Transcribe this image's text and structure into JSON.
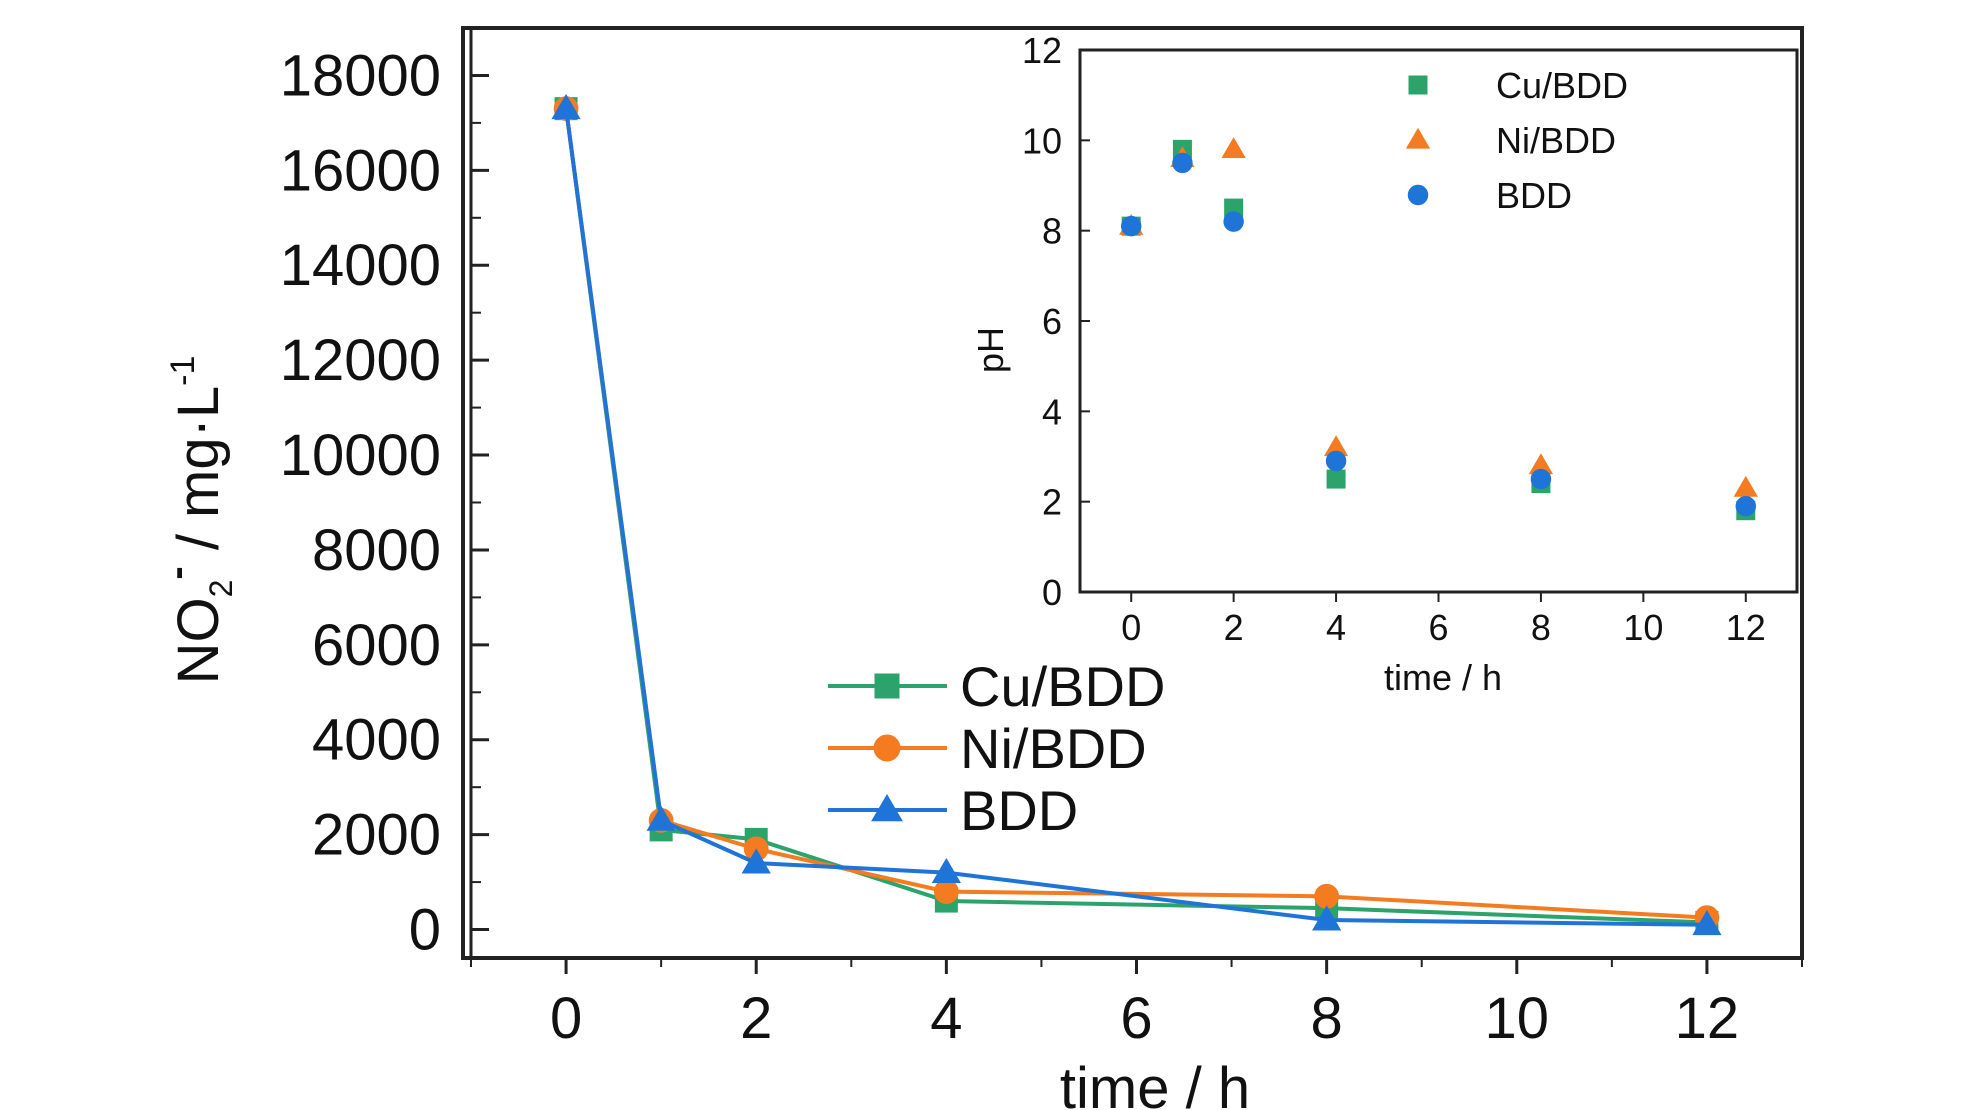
{
  "chart_data": [
    {
      "type": "line",
      "xlabel": "time / h",
      "ylabel_main": "NO",
      "ylabel_sub": "2",
      "ylabel_sup": "-",
      "ylabel_rest": " / mg·L",
      "ylabel_rest_sup": "-1",
      "xlim": [
        -1,
        13
      ],
      "ylim": [
        -600,
        19000
      ],
      "xticks": [
        0,
        2,
        4,
        6,
        8,
        10,
        12
      ],
      "yticks": [
        0,
        2000,
        4000,
        6000,
        8000,
        10000,
        12000,
        14000,
        16000,
        18000
      ],
      "legend_position": "center-right",
      "series": [
        {
          "name": "Cu/BDD",
          "color": "#2ca36b",
          "marker": "square",
          "x": [
            0,
            1,
            2,
            4,
            8,
            12
          ],
          "y": [
            17300,
            2100,
            1900,
            600,
            450,
            150
          ]
        },
        {
          "name": "Ni/BDD",
          "color": "#f47b20",
          "marker": "circle",
          "x": [
            0,
            1,
            2,
            4,
            8,
            12
          ],
          "y": [
            17300,
            2300,
            1700,
            800,
            700,
            250
          ]
        },
        {
          "name": "BDD",
          "color": "#1f74d8",
          "marker": "triangle",
          "x": [
            0,
            1,
            2,
            4,
            8,
            12
          ],
          "y": [
            17300,
            2300,
            1400,
            1200,
            200,
            100
          ]
        }
      ]
    },
    {
      "type": "scatter",
      "xlabel": "time / h",
      "ylabel": "pH",
      "xlim": [
        -1,
        13
      ],
      "ylim": [
        0,
        12
      ],
      "xticks": [
        0,
        2,
        4,
        6,
        8,
        10,
        12
      ],
      "yticks": [
        0,
        2,
        4,
        6,
        8,
        10,
        12
      ],
      "legend_position": "top-right",
      "series": [
        {
          "name": "Cu/BDD",
          "color": "#2ca36b",
          "marker": "square",
          "x": [
            0,
            1,
            2,
            4,
            8,
            12
          ],
          "y": [
            8.1,
            9.8,
            8.5,
            2.5,
            2.4,
            1.8
          ]
        },
        {
          "name": "Ni/BDD",
          "color": "#f47b20",
          "marker": "triangle",
          "x": [
            0,
            1,
            2,
            4,
            8,
            12
          ],
          "y": [
            8.1,
            9.6,
            9.8,
            3.2,
            2.8,
            2.3
          ]
        },
        {
          "name": "BDD",
          "color": "#1f74d8",
          "marker": "circle",
          "x": [
            0,
            1,
            2,
            4,
            8,
            12
          ],
          "y": [
            8.1,
            9.5,
            8.2,
            2.9,
            2.5,
            1.9
          ]
        }
      ]
    }
  ]
}
